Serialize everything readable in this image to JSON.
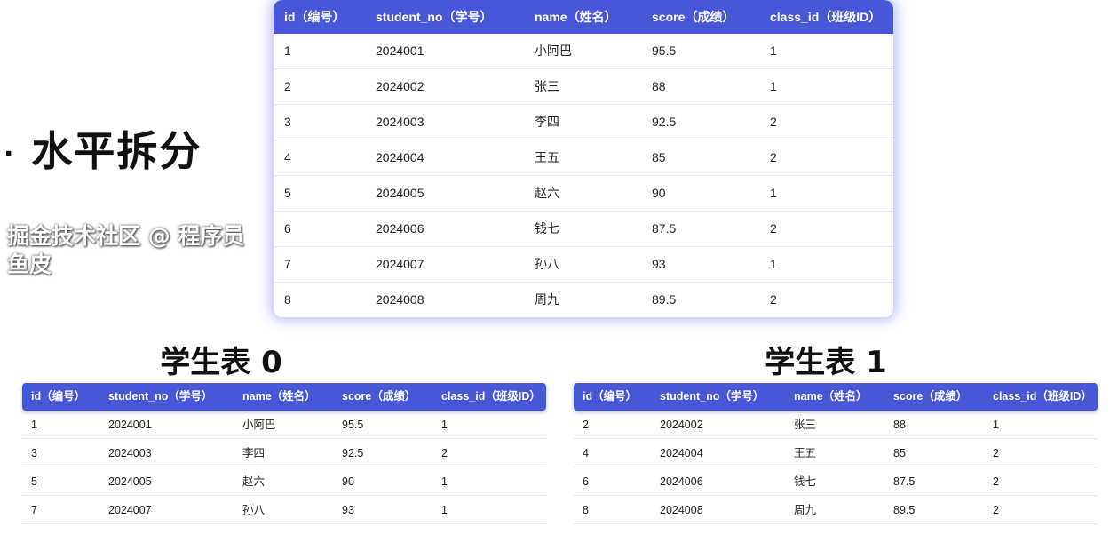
{
  "heading": {
    "bullet": "·",
    "text": "水平拆分"
  },
  "columns": [
    "id（编号）",
    "student_no（学号）",
    "name（姓名）",
    "score（成绩）",
    "class_id（班级ID）"
  ],
  "main_table": {
    "rows": [
      [
        "1",
        "2024001",
        "小阿巴",
        "95.5",
        "1"
      ],
      [
        "2",
        "2024002",
        "张三",
        "88",
        "1"
      ],
      [
        "3",
        "2024003",
        "李四",
        "92.5",
        "2"
      ],
      [
        "4",
        "2024004",
        "王五",
        "85",
        "2"
      ],
      [
        "5",
        "2024005",
        "赵六",
        "90",
        "1"
      ],
      [
        "6",
        "2024006",
        "钱七",
        "87.5",
        "2"
      ],
      [
        "7",
        "2024007",
        "孙八",
        "93",
        "1"
      ],
      [
        "8",
        "2024008",
        "周九",
        "89.5",
        "2"
      ]
    ]
  },
  "table0": {
    "title": "学生表 0",
    "rows": [
      [
        "1",
        "2024001",
        "小阿巴",
        "95.5",
        "1"
      ],
      [
        "3",
        "2024003",
        "李四",
        "92.5",
        "2"
      ],
      [
        "5",
        "2024005",
        "赵六",
        "90",
        "1"
      ],
      [
        "7",
        "2024007",
        "孙八",
        "93",
        "1"
      ]
    ]
  },
  "table1": {
    "title": "学生表 1",
    "rows": [
      [
        "2",
        "2024002",
        "张三",
        "88",
        "1"
      ],
      [
        "4",
        "2024004",
        "王五",
        "85",
        "2"
      ],
      [
        "6",
        "2024006",
        "钱七",
        "87.5",
        "2"
      ],
      [
        "8",
        "2024008",
        "周九",
        "89.5",
        "2"
      ]
    ]
  },
  "watermark": "掘金技术社区 @ 程序员鱼皮",
  "colors": {
    "header": "#4657d8"
  }
}
